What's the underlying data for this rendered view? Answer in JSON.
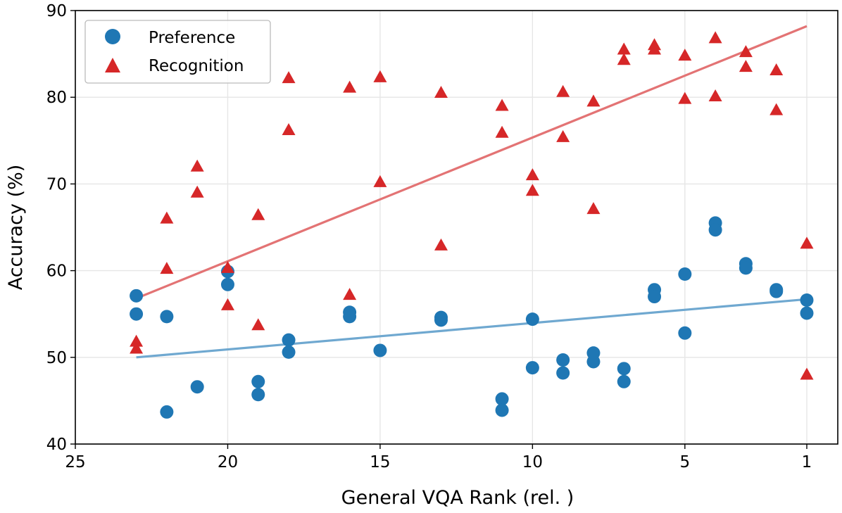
{
  "chart_data": {
    "type": "scatter",
    "title": "",
    "xlabel": "General VQA Rank (rel. )",
    "ylabel": "Accuracy (%)",
    "xlim": [
      25,
      0.2
    ],
    "ylim": [
      40,
      90
    ],
    "x_inverted": true,
    "xticks": [
      25,
      20,
      15,
      10,
      5,
      1
    ],
    "yticks": [
      40,
      50,
      60,
      70,
      80,
      90
    ],
    "grid": true,
    "legend": {
      "placement": "top-left",
      "entries": [
        "Preference",
        "Recognition"
      ]
    },
    "series": [
      {
        "name": "Preference",
        "marker": "circle",
        "color": "#1f77b4",
        "points": [
          [
            23,
            57.1
          ],
          [
            23,
            55.0
          ],
          [
            22,
            54.7
          ],
          [
            22,
            43.7
          ],
          [
            21,
            46.6
          ],
          [
            20,
            59.9
          ],
          [
            20,
            58.4
          ],
          [
            19,
            47.2
          ],
          [
            19,
            45.7
          ],
          [
            18,
            52.0
          ],
          [
            18,
            50.6
          ],
          [
            16,
            55.2
          ],
          [
            16,
            54.7
          ],
          [
            15,
            50.8
          ],
          [
            13,
            54.6
          ],
          [
            13,
            54.3
          ],
          [
            11,
            45.2
          ],
          [
            11,
            43.9
          ],
          [
            10,
            54.4
          ],
          [
            10,
            48.8
          ],
          [
            9,
            49.7
          ],
          [
            9,
            48.2
          ],
          [
            8,
            50.5
          ],
          [
            8,
            49.5
          ],
          [
            7,
            48.7
          ],
          [
            7,
            47.2
          ],
          [
            6,
            57.8
          ],
          [
            6,
            57.0
          ],
          [
            5,
            59.6
          ],
          [
            5,
            52.8
          ],
          [
            4,
            65.5
          ],
          [
            4,
            64.7
          ],
          [
            3,
            60.8
          ],
          [
            3,
            60.3
          ],
          [
            2,
            57.8
          ],
          [
            2,
            57.6
          ],
          [
            1,
            56.6
          ],
          [
            1,
            55.1
          ]
        ],
        "trend": {
          "color": "#6fa8d0",
          "from": [
            23,
            50.0
          ],
          "to": [
            1,
            56.7
          ]
        }
      },
      {
        "name": "Recognition",
        "marker": "triangle",
        "color": "#d62728",
        "points": [
          [
            23,
            51.8
          ],
          [
            23,
            51.0
          ],
          [
            22,
            66.0
          ],
          [
            22,
            60.2
          ],
          [
            21,
            72.0
          ],
          [
            21,
            69.0
          ],
          [
            20,
            60.3
          ],
          [
            20,
            56.0
          ],
          [
            19,
            66.4
          ],
          [
            19,
            53.7
          ],
          [
            18,
            82.2
          ],
          [
            18,
            76.2
          ],
          [
            16,
            81.1
          ],
          [
            16,
            57.2
          ],
          [
            15,
            82.3
          ],
          [
            15,
            70.2
          ],
          [
            13,
            80.5
          ],
          [
            13,
            62.9
          ],
          [
            11,
            79.0
          ],
          [
            11,
            75.9
          ],
          [
            10,
            71.0
          ],
          [
            10,
            69.2
          ],
          [
            9,
            80.6
          ],
          [
            9,
            75.4
          ],
          [
            8,
            79.5
          ],
          [
            8,
            67.1
          ],
          [
            7,
            85.5
          ],
          [
            7,
            84.3
          ],
          [
            6,
            86.0
          ],
          [
            6,
            85.5
          ],
          [
            5,
            84.8
          ],
          [
            5,
            79.8
          ],
          [
            4,
            86.8
          ],
          [
            4,
            80.1
          ],
          [
            3,
            85.2
          ],
          [
            3,
            83.5
          ],
          [
            2,
            83.1
          ],
          [
            2,
            78.5
          ],
          [
            1,
            63.1
          ],
          [
            1,
            48.0
          ]
        ],
        "trend": {
          "color": "#e37374",
          "from": [
            23,
            56.8
          ],
          "to": [
            1,
            88.2
          ]
        }
      }
    ]
  }
}
